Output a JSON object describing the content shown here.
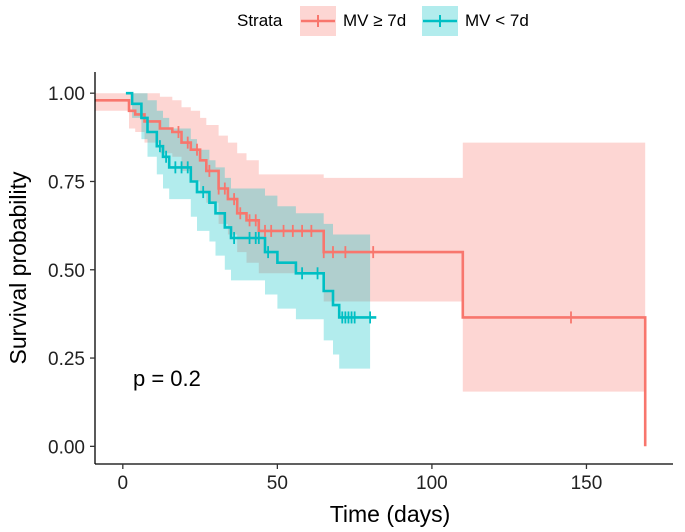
{
  "chart_data": {
    "type": "line",
    "subtype": "kaplan-meier step survival curves with confidence bands",
    "xlabel": "Time (days)",
    "ylabel": "Survival probability",
    "xlim": [
      -9,
      178
    ],
    "ylim": [
      -0.05,
      1.06
    ],
    "x_ticks": [
      0,
      50,
      100,
      150
    ],
    "x_tick_labels": [
      "0",
      "50",
      "100",
      "150"
    ],
    "y_ticks": [
      0.0,
      0.25,
      0.5,
      0.75,
      1.0
    ],
    "y_tick_labels": [
      "0.00",
      "0.25",
      "0.50",
      "0.75",
      "1.00"
    ],
    "grid": false,
    "legend": {
      "title": "Strata",
      "position": "top"
    },
    "annotation": "p = 0.2",
    "series": [
      {
        "name": "MV ≥ 7d",
        "color": "#F8766D",
        "band_color": "#F8766D",
        "steps": [
          [
            -9,
            0.98
          ],
          [
            2,
            0.98
          ],
          [
            2,
            0.95
          ],
          [
            4,
            0.95
          ],
          [
            4,
            0.94
          ],
          [
            7,
            0.94
          ],
          [
            7,
            0.92
          ],
          [
            12,
            0.92
          ],
          [
            12,
            0.9
          ],
          [
            16,
            0.9
          ],
          [
            16,
            0.89
          ],
          [
            19,
            0.89
          ],
          [
            19,
            0.86
          ],
          [
            22,
            0.86
          ],
          [
            22,
            0.84
          ],
          [
            25,
            0.84
          ],
          [
            25,
            0.81
          ],
          [
            27,
            0.81
          ],
          [
            27,
            0.78
          ],
          [
            31,
            0.78
          ],
          [
            31,
            0.73
          ],
          [
            34,
            0.73
          ],
          [
            34,
            0.7
          ],
          [
            37,
            0.7
          ],
          [
            37,
            0.66
          ],
          [
            40,
            0.66
          ],
          [
            40,
            0.64
          ],
          [
            44,
            0.64
          ],
          [
            44,
            0.61
          ],
          [
            65,
            0.61
          ],
          [
            65,
            0.55
          ],
          [
            110,
            0.55
          ],
          [
            110,
            0.365
          ],
          [
            169,
            0.365
          ],
          [
            169,
            0.0
          ]
        ],
        "band": [
          [
            -9,
            0.95,
            1.0
          ],
          [
            2,
            0.9,
            1.0
          ],
          [
            4,
            0.89,
            1.0
          ],
          [
            7,
            0.86,
            1.0
          ],
          [
            12,
            0.83,
            0.99
          ],
          [
            16,
            0.82,
            0.98
          ],
          [
            19,
            0.78,
            0.96
          ],
          [
            22,
            0.75,
            0.95
          ],
          [
            25,
            0.72,
            0.93
          ],
          [
            27,
            0.69,
            0.91
          ],
          [
            31,
            0.63,
            0.88
          ],
          [
            34,
            0.6,
            0.86
          ],
          [
            37,
            0.55,
            0.83
          ],
          [
            40,
            0.52,
            0.81
          ],
          [
            44,
            0.49,
            0.77
          ],
          [
            65,
            0.41,
            0.76
          ],
          [
            110,
            0.155,
            0.86
          ],
          [
            169,
            0.155,
            0.86
          ]
        ],
        "censor_times": [
          18,
          21,
          24,
          28,
          31,
          33,
          36,
          38,
          41,
          43,
          46,
          48,
          52,
          55,
          58,
          61,
          65,
          68,
          72,
          81,
          145
        ]
      },
      {
        "name": "MV < 7d",
        "color": "#00BFC4",
        "band_color": "#00BFC4",
        "steps": [
          [
            1,
            1.0
          ],
          [
            3,
            1.0
          ],
          [
            3,
            0.97
          ],
          [
            6,
            0.97
          ],
          [
            6,
            0.93
          ],
          [
            8,
            0.93
          ],
          [
            8,
            0.89
          ],
          [
            11,
            0.89
          ],
          [
            11,
            0.85
          ],
          [
            13,
            0.85
          ],
          [
            13,
            0.82
          ],
          [
            15,
            0.82
          ],
          [
            15,
            0.79
          ],
          [
            22,
            0.79
          ],
          [
            22,
            0.75
          ],
          [
            24,
            0.75
          ],
          [
            24,
            0.72
          ],
          [
            28,
            0.72
          ],
          [
            28,
            0.69
          ],
          [
            30,
            0.69
          ],
          [
            30,
            0.66
          ],
          [
            33,
            0.66
          ],
          [
            33,
            0.62
          ],
          [
            35,
            0.62
          ],
          [
            35,
            0.59
          ],
          [
            46,
            0.59
          ],
          [
            46,
            0.55
          ],
          [
            50,
            0.55
          ],
          [
            50,
            0.52
          ],
          [
            56,
            0.52
          ],
          [
            56,
            0.49
          ],
          [
            65,
            0.49
          ],
          [
            65,
            0.44
          ],
          [
            68,
            0.44
          ],
          [
            68,
            0.4
          ],
          [
            70,
            0.4
          ],
          [
            70,
            0.365
          ],
          [
            82,
            0.365
          ]
        ],
        "band": [
          [
            1,
            1.0,
            1.0
          ],
          [
            3,
            0.93,
            1.0
          ],
          [
            6,
            0.87,
            1.0
          ],
          [
            8,
            0.82,
            0.98
          ],
          [
            11,
            0.77,
            0.95
          ],
          [
            13,
            0.73,
            0.93
          ],
          [
            15,
            0.7,
            0.9
          ],
          [
            22,
            0.65,
            0.87
          ],
          [
            24,
            0.61,
            0.84
          ],
          [
            28,
            0.58,
            0.81
          ],
          [
            30,
            0.54,
            0.79
          ],
          [
            33,
            0.5,
            0.76
          ],
          [
            35,
            0.47,
            0.73
          ],
          [
            46,
            0.43,
            0.71
          ],
          [
            50,
            0.39,
            0.68
          ],
          [
            56,
            0.36,
            0.66
          ],
          [
            65,
            0.3,
            0.63
          ],
          [
            68,
            0.26,
            0.6
          ],
          [
            70,
            0.22,
            0.6
          ],
          [
            80,
            0.22,
            0.6
          ]
        ],
        "censor_times": [
          12,
          14,
          17,
          19,
          21,
          26,
          36,
          41,
          43,
          44,
          47,
          58,
          63,
          71,
          72,
          73,
          74,
          75,
          80
        ]
      }
    ]
  }
}
